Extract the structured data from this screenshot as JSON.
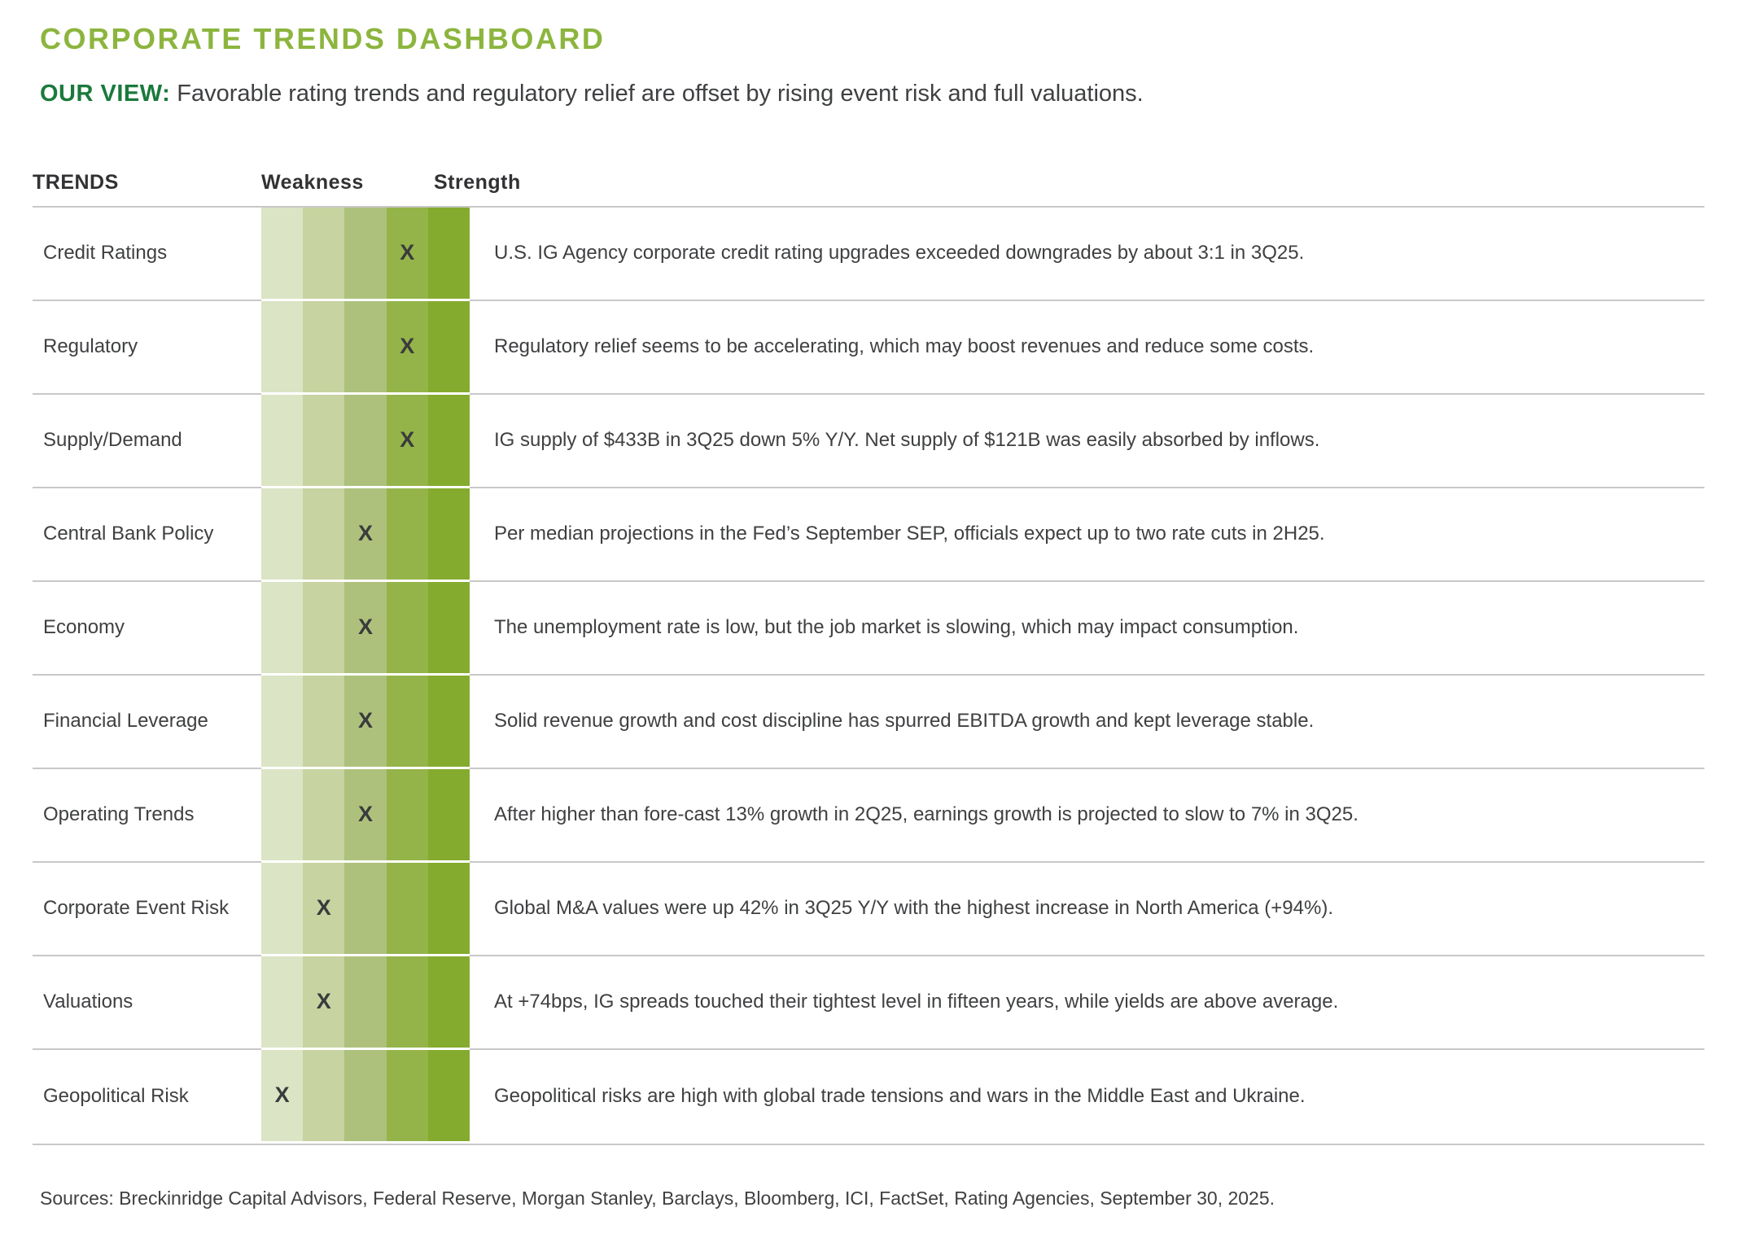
{
  "header": {
    "title": "CORPORATE TRENDS DASHBOARD",
    "view_label": "OUR VIEW:",
    "view_text": "Favorable rating trends and regulatory relief are offset by rising event risk and full valuations."
  },
  "table": {
    "columns": {
      "trends": "TRENDS",
      "weakness": "Weakness",
      "strength": "Strength"
    },
    "marker": "X",
    "scale_levels": 5,
    "scale_colors": [
      "#DBE4C4",
      "#C7D3A0",
      "#ADC17C",
      "#94B449",
      "#85AB2E"
    ],
    "rows": [
      {
        "label": "Credit Ratings",
        "rating": 4,
        "description": "U.S. IG Agency corporate credit rating upgrades exceeded downgrades by about 3:1 in 3Q25."
      },
      {
        "label": "Regulatory",
        "rating": 4,
        "description": "Regulatory relief seems to be accelerating, which may boost revenues and reduce some costs."
      },
      {
        "label": "Supply/Demand",
        "rating": 4,
        "description": "IG supply of $433B in 3Q25 down 5% Y/Y. Net supply of $121B was easily absorbed by inflows."
      },
      {
        "label": "Central Bank Policy",
        "rating": 3,
        "description": "Per median projections in the Fed’s September SEP, officials expect up to two rate cuts in 2H25."
      },
      {
        "label": "Economy",
        "rating": 3,
        "description": "The unemployment rate is low, but the job market is slowing, which may impact consumption."
      },
      {
        "label": "Financial Leverage",
        "rating": 3,
        "description": "Solid revenue growth and cost discipline has spurred EBITDA growth and kept leverage stable."
      },
      {
        "label": "Operating Trends",
        "rating": 3,
        "description": "After higher than fore-cast 13% growth in 2Q25, earnings growth is projected to slow to 7% in 3Q25."
      },
      {
        "label": "Corporate Event Risk",
        "rating": 2,
        "description": "Global M&A values were up 42% in 3Q25 Y/Y with the highest increase in North America (+94%)."
      },
      {
        "label": "Valuations",
        "rating": 2,
        "description": "At +74bps, IG spreads touched their tightest level in fifteen years, while yields are above average."
      },
      {
        "label": "Geopolitical Risk",
        "rating": 1,
        "description": "Geopolitical risks are high with global trade tensions and wars in the Middle East and Ukraine."
      }
    ]
  },
  "footer": {
    "sources": "Sources: Breckinridge Capital Advisors, Federal Reserve, Morgan Stanley, Barclays, Bloomberg, ICI, FactSet, Rating Agencies, September 30, 2025."
  },
  "theme": {
    "accent_green": "#8CB53E",
    "dark_green": "#1A7A3C",
    "grid_line": "#C8C8C8",
    "marker_color": "#3A3B3D",
    "text_dark": "#3F4042"
  },
  "chart_data": {
    "type": "table",
    "title": "CORPORATE TRENDS DASHBOARD",
    "subtitle": "OUR VIEW: Favorable rating trends and regulatory relief are offset by rising event risk and full valuations.",
    "scale": {
      "axis_left_label": "Weakness",
      "axis_right_label": "Strength",
      "levels": 5,
      "level_1_means": "weakest",
      "level_5_means": "strongest"
    },
    "rows": [
      {
        "trend": "Credit Ratings",
        "rating": 4,
        "comment": "U.S. IG Agency corporate credit rating upgrades exceeded downgrades by about 3:1 in 3Q25."
      },
      {
        "trend": "Regulatory",
        "rating": 4,
        "comment": "Regulatory relief seems to be accelerating, which may boost revenues and reduce some costs."
      },
      {
        "trend": "Supply/Demand",
        "rating": 4,
        "comment": "IG supply of $433B in 3Q25 down 5% Y/Y. Net supply of $121B was easily absorbed by inflows."
      },
      {
        "trend": "Central Bank Policy",
        "rating": 3,
        "comment": "Per median projections in the Fed’s September SEP, officials expect up to two rate cuts in 2H25."
      },
      {
        "trend": "Economy",
        "rating": 3,
        "comment": "The unemployment rate is low, but the job market is slowing, which may impact consumption."
      },
      {
        "trend": "Financial Leverage",
        "rating": 3,
        "comment": "Solid revenue growth and cost discipline has spurred EBITDA growth and kept leverage stable."
      },
      {
        "trend": "Operating Trends",
        "rating": 3,
        "comment": "After higher than fore-cast 13% growth in 2Q25, earnings growth is projected to slow to 7% in 3Q25."
      },
      {
        "trend": "Corporate Event Risk",
        "rating": 2,
        "comment": "Global M&A values were up 42% in 3Q25 Y/Y with the highest increase in North America (+94%)."
      },
      {
        "trend": "Valuations",
        "rating": 2,
        "comment": "At +74bps, IG spreads touched their tightest level in fifteen years, while yields are above average."
      },
      {
        "trend": "Geopolitical Risk",
        "rating": 1,
        "comment": "Geopolitical risks are high with global trade tensions and wars in the Middle East and Ukraine."
      }
    ],
    "footnote": "Sources: Breckinridge Capital Advisors, Federal Reserve, Morgan Stanley, Barclays, Bloomberg, ICI, FactSet, Rating Agencies, September 30, 2025."
  }
}
